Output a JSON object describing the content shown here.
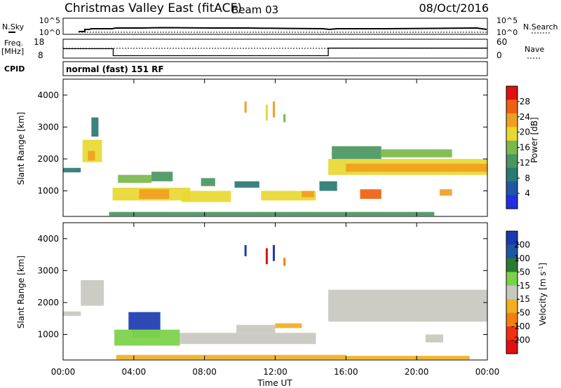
{
  "header": {
    "title": "Christmas Valley East (fitACF)",
    "beam": "Beam 03",
    "date": "08/Oct/2016"
  },
  "nsky_panel": {
    "left_label": "N.Sky",
    "right_label": "N.Search",
    "left_ticks": [
      "10^5",
      "10^0"
    ],
    "right_ticks": [
      "10^5",
      "10^0"
    ]
  },
  "freq_panel": {
    "left_label_1": "Freq.",
    "left_label_2": "[MHz]",
    "right_label": "Nave",
    "left_ticks": [
      "18",
      "8"
    ],
    "right_ticks": [
      "60",
      "0"
    ],
    "freq_steps": [
      {
        "from": "00:00",
        "to": "02:50",
        "value": 13
      },
      {
        "from": "02:50",
        "to": "15:00",
        "value": 9.3
      },
      {
        "from": "15:00",
        "to": "24:00",
        "value": 13.3
      }
    ]
  },
  "cpid": {
    "label": "CPID",
    "value": "normal (fast) 151 RF"
  },
  "time_axis": {
    "title": "Time UT",
    "ticks": [
      "00:00",
      "04:00",
      "08:00",
      "12:00",
      "16:00",
      "20:00",
      "00:00"
    ]
  },
  "colors": {
    "power_scale": [
      "#2030e0",
      "#1f56a8",
      "#2a7a72",
      "#4a9660",
      "#7ab84a",
      "#e8d830",
      "#f0a020",
      "#f06010",
      "#e01010"
    ],
    "velocity_scale": [
      "#1a3ab0",
      "#1c58a0",
      "#2a7a30",
      "#7ad048",
      "#c8c8c0",
      "#f0b020",
      "#f08010",
      "#f03010",
      "#e01010"
    ]
  },
  "chart_data": [
    {
      "type": "heatmap",
      "title": "Power",
      "xlabel": "Time UT",
      "ylabel": "Slant Range [km]",
      "x_ticks": [
        "00:00",
        "04:00",
        "08:00",
        "12:00",
        "16:00",
        "20:00",
        "00:00"
      ],
      "y_ticks": [
        "1000",
        "2000",
        "3000",
        "4000"
      ],
      "ylim": [
        200,
        4500
      ],
      "colorbar": {
        "label": "Power [dB]",
        "ticks": [
          "4",
          "8",
          "12",
          "16",
          "20",
          "24",
          "28"
        ],
        "range": [
          0,
          32
        ]
      },
      "regions": [
        {
          "t0": 0.0,
          "t1": 1.0,
          "r0": 1580,
          "r1": 1720,
          "level": 10
        },
        {
          "t0": 1.1,
          "t1": 2.2,
          "r0": 1900,
          "r1": 2600,
          "level": 18
        },
        {
          "t0": 1.4,
          "t1": 1.8,
          "r0": 1950,
          "r1": 2250,
          "level": 24
        },
        {
          "t0": 1.6,
          "t1": 2.0,
          "r0": 2700,
          "r1": 3300,
          "level": 8
        },
        {
          "t0": 2.8,
          "t1": 7.2,
          "r0": 700,
          "r1": 1100,
          "level": 18
        },
        {
          "t0": 4.3,
          "t1": 6.0,
          "r0": 750,
          "r1": 1050,
          "level": 24
        },
        {
          "t0": 3.1,
          "t1": 5.0,
          "r0": 1250,
          "r1": 1500,
          "level": 16
        },
        {
          "t0": 5.0,
          "t1": 6.2,
          "r0": 1300,
          "r1": 1600,
          "level": 12
        },
        {
          "t0": 6.7,
          "t1": 9.5,
          "r0": 650,
          "r1": 1000,
          "level": 18
        },
        {
          "t0": 7.8,
          "t1": 8.6,
          "r0": 1150,
          "r1": 1400,
          "level": 14
        },
        {
          "t0": 9.7,
          "t1": 11.1,
          "r0": 1100,
          "r1": 1300,
          "level": 10
        },
        {
          "t0": 11.2,
          "t1": 14.3,
          "r0": 700,
          "r1": 1000,
          "level": 18
        },
        {
          "t0": 13.5,
          "t1": 14.2,
          "r0": 800,
          "r1": 1000,
          "level": 24
        },
        {
          "t0": 15.0,
          "t1": 24.0,
          "r0": 1500,
          "r1": 2000,
          "level": 18
        },
        {
          "t0": 16.0,
          "t1": 24.0,
          "r0": 1600,
          "r1": 1850,
          "level": 24
        },
        {
          "t0": 15.2,
          "t1": 18.0,
          "r0": 2000,
          "r1": 2400,
          "level": 14
        },
        {
          "t0": 18.0,
          "t1": 22.0,
          "r0": 2050,
          "r1": 2300,
          "level": 16
        },
        {
          "t0": 16.8,
          "t1": 18.0,
          "r0": 750,
          "r1": 1050,
          "level": 28
        },
        {
          "t0": 21.3,
          "t1": 22.0,
          "r0": 850,
          "r1": 1050,
          "level": 24
        },
        {
          "t0": 14.5,
          "t1": 15.5,
          "r0": 1000,
          "r1": 1300,
          "level": 8
        },
        {
          "t0": 2.6,
          "t1": 21.0,
          "r0": 220,
          "r1": 340,
          "level": 14
        }
      ],
      "streaks": [
        {
          "t": 10.3,
          "r0": 3450,
          "r1": 3800,
          "level": 24
        },
        {
          "t": 11.5,
          "r0": 3200,
          "r1": 3700,
          "level": 20
        },
        {
          "t": 11.9,
          "r0": 3300,
          "r1": 3800,
          "level": 24
        },
        {
          "t": 12.5,
          "r0": 3150,
          "r1": 3400,
          "level": 16
        }
      ]
    },
    {
      "type": "heatmap",
      "title": "Velocity",
      "xlabel": "Time UT",
      "ylabel": "Slant Range [km]",
      "x_ticks": [
        "00:00",
        "04:00",
        "08:00",
        "12:00",
        "16:00",
        "20:00",
        "00:00"
      ],
      "y_ticks": [
        "1000",
        "2000",
        "3000",
        "4000"
      ],
      "ylim": [
        200,
        4500
      ],
      "colorbar": {
        "label": "Velocity [m s^-1]",
        "ticks": [
          "200",
          "100",
          "50",
          "15",
          "-15",
          "-50",
          "-100",
          "-200"
        ],
        "range": [
          -250,
          250
        ]
      },
      "regions": [
        {
          "t0": 0.0,
          "t1": 1.0,
          "r0": 1580,
          "r1": 1720,
          "level": 0
        },
        {
          "t0": 1.0,
          "t1": 2.3,
          "r0": 1900,
          "r1": 2700,
          "level": 0
        },
        {
          "t0": 2.9,
          "t1": 6.6,
          "r0": 650,
          "r1": 1150,
          "level": 40
        },
        {
          "t0": 3.9,
          "t1": 5.5,
          "r0": 900,
          "r1": 1150,
          "level": 70
        },
        {
          "t0": 3.7,
          "t1": 5.5,
          "r0": 1150,
          "r1": 1700,
          "level": 220
        },
        {
          "t0": 6.6,
          "t1": 14.3,
          "r0": 700,
          "r1": 1050,
          "level": 0
        },
        {
          "t0": 9.8,
          "t1": 12.0,
          "r0": 1050,
          "r1": 1300,
          "level": 0
        },
        {
          "t0": 12.0,
          "t1": 13.5,
          "r0": 1200,
          "r1": 1350,
          "level": -40
        },
        {
          "t0": 15.0,
          "t1": 24.0,
          "r0": 1400,
          "r1": 2400,
          "level": 0
        },
        {
          "t0": 20.5,
          "t1": 21.5,
          "r0": 750,
          "r1": 1000,
          "level": 0
        },
        {
          "t0": 3.0,
          "t1": 16.0,
          "r0": 220,
          "r1": 360,
          "level": -40
        },
        {
          "t0": 16.0,
          "t1": 23.0,
          "r0": 220,
          "r1": 330,
          "level": -30
        }
      ],
      "streaks": [
        {
          "t": 10.3,
          "r0": 3450,
          "r1": 3800,
          "level": 200
        },
        {
          "t": 11.5,
          "r0": 3200,
          "r1": 3700,
          "level": -200
        },
        {
          "t": 11.9,
          "r0": 3300,
          "r1": 3800,
          "level": 200
        },
        {
          "t": 12.5,
          "r0": 3150,
          "r1": 3400,
          "level": -100
        }
      ]
    }
  ]
}
